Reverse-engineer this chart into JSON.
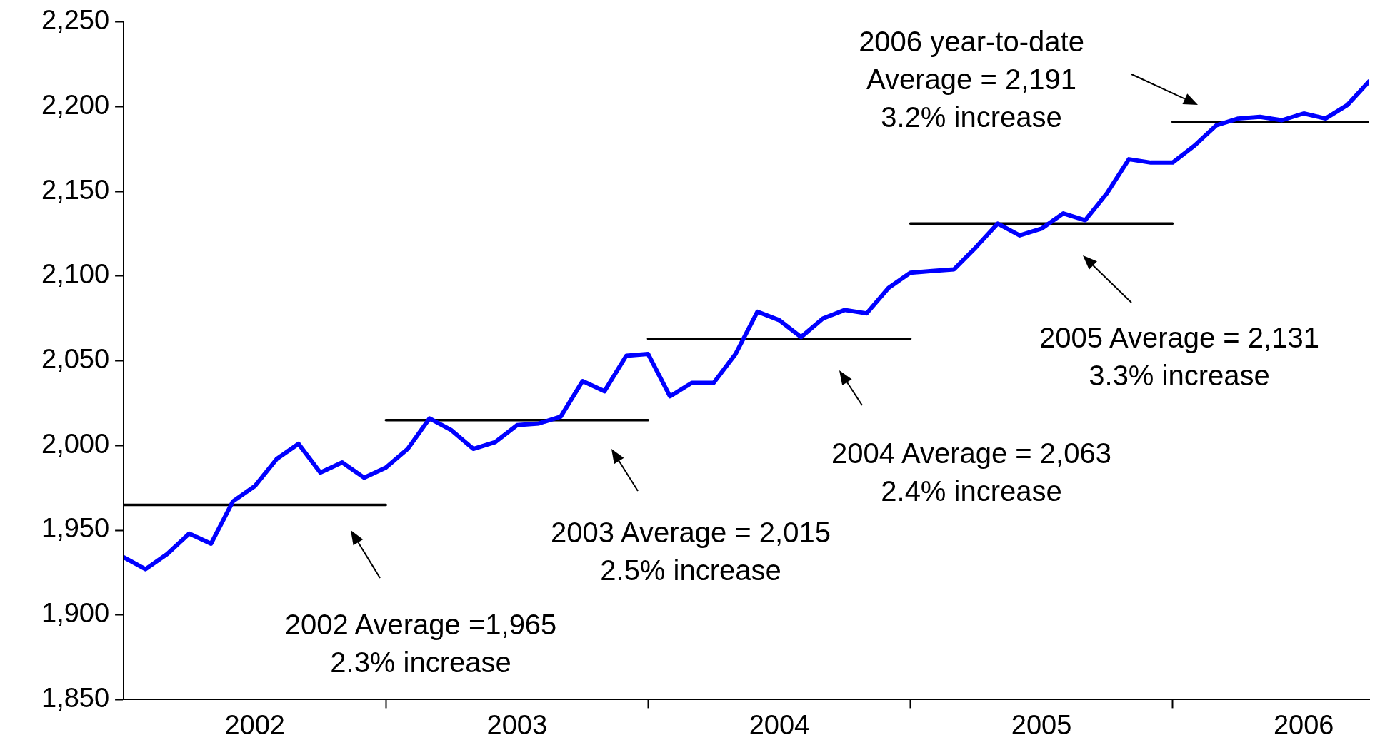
{
  "chart_data": {
    "type": "line",
    "x": [
      "2002-01",
      "2002-02",
      "2002-03",
      "2002-04",
      "2002-05",
      "2002-06",
      "2002-07",
      "2002-08",
      "2002-09",
      "2002-10",
      "2002-11",
      "2002-12",
      "2003-01",
      "2003-02",
      "2003-03",
      "2003-04",
      "2003-05",
      "2003-06",
      "2003-07",
      "2003-08",
      "2003-09",
      "2003-10",
      "2003-11",
      "2003-12",
      "2004-01",
      "2004-02",
      "2004-03",
      "2004-04",
      "2004-05",
      "2004-06",
      "2004-07",
      "2004-08",
      "2004-09",
      "2004-10",
      "2004-11",
      "2004-12",
      "2005-01",
      "2005-02",
      "2005-03",
      "2005-04",
      "2005-05",
      "2005-06",
      "2005-07",
      "2005-08",
      "2005-09",
      "2005-10",
      "2005-11",
      "2005-12",
      "2006-01",
      "2006-02",
      "2006-03",
      "2006-04",
      "2006-05",
      "2006-06",
      "2006-07",
      "2006-08",
      "2006-09",
      "2006-10"
    ],
    "series": [
      {
        "color": "#0000ff",
        "values": [
          1934,
          1927,
          1936,
          1948,
          1942,
          1967,
          1976,
          1992,
          2001,
          1984,
          1990,
          1981,
          1987,
          1998,
          2016,
          2009,
          1998,
          2002,
          2012,
          2013,
          2017,
          2038,
          2032,
          2053,
          2054,
          2029,
          2037,
          2037,
          2054,
          2079,
          2074,
          2064,
          2075,
          2080,
          2078,
          2093,
          2102,
          2103,
          2104,
          2117,
          2131,
          2124,
          2128,
          2137,
          2133,
          2149,
          2169,
          2167,
          2167,
          2177,
          2189,
          2193,
          2194,
          2192,
          2196,
          2193,
          2201,
          2215
        ]
      },
      {
        "type": "line",
        "color": "#000000",
        "x": [
          "2002-01",
          "2003-01"
        ],
        "values": [
          1965,
          1965
        ]
      },
      {
        "type": "line",
        "color": "#000000",
        "x": [
          "2003-01",
          "2004-01"
        ],
        "values": [
          2015,
          2015
        ]
      },
      {
        "type": "line",
        "color": "#000000",
        "x": [
          "2004-01",
          "2005-01"
        ],
        "values": [
          2063,
          2063
        ]
      },
      {
        "type": "line",
        "color": "#000000",
        "x": [
          "2005-01",
          "2006-01"
        ],
        "values": [
          2131,
          2131
        ]
      },
      {
        "type": "line",
        "color": "#000000",
        "x": [
          "2006-01",
          "2006-10"
        ],
        "values": [
          2191,
          2191
        ]
      }
    ],
    "xlim": [
      "2002-01",
      "2006-10"
    ],
    "xticks": [
      {
        "value": "2002-07",
        "label": "2002"
      },
      {
        "value": "2003-01",
        "label": null
      },
      {
        "value": "2003-07",
        "label": "2003"
      },
      {
        "value": "2004-01",
        "label": null
      },
      {
        "value": "2004-07",
        "label": "2004"
      },
      {
        "value": "2005-01",
        "label": null
      },
      {
        "value": "2005-07",
        "label": "2005"
      },
      {
        "value": "2006-01",
        "label": null
      },
      {
        "value": "2006-07",
        "label": "2006"
      }
    ],
    "ylim": [
      1850,
      2250
    ],
    "yticks": [
      {
        "value": 1850,
        "label": "1,850"
      },
      {
        "value": 1900,
        "label": "1,900"
      },
      {
        "value": 1950,
        "label": "1,950"
      },
      {
        "value": 2000,
        "label": "2,000"
      },
      {
        "value": 2050,
        "label": "2,050"
      },
      {
        "value": 2100,
        "label": "2,100"
      },
      {
        "value": 2150,
        "label": "2,150"
      },
      {
        "value": 2200,
        "label": "2,200"
      },
      {
        "value": 2250,
        "label": "2,250"
      }
    ],
    "grid": false,
    "legend": false,
    "marker": "none",
    "line_style": "solid",
    "annotations": [
      "2002 Average =1,965\n2.3% increase",
      "2003 Average = 2,015\n2.5% increase",
      "2004 Average = 2,063\n2.4% increase",
      "2005 Average = 2,131\n3.3% increase",
      "2006 year-to-date\nAverage = 2,191\n3.2% increase"
    ]
  }
}
